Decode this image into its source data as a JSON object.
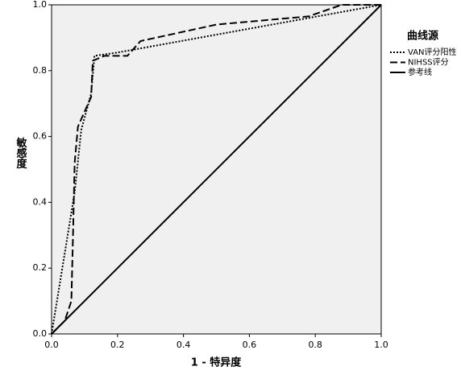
{
  "chart_data": {
    "type": "line",
    "x_label": "1 - 特异度",
    "y_label": "敏感度",
    "legend_title": "曲线源",
    "legend": "right",
    "xlim": [
      0,
      1
    ],
    "ylim": [
      0,
      1
    ],
    "xticks": [
      {
        "value": 0,
        "label": "0.0"
      },
      {
        "value": 0.2,
        "label": "0.2"
      },
      {
        "value": 0.4,
        "label": "0.4"
      },
      {
        "value": 0.6,
        "label": "0.6"
      },
      {
        "value": 0.8,
        "label": "0.8"
      },
      {
        "value": 1,
        "label": "1.0"
      }
    ],
    "yticks": [
      {
        "value": 0,
        "label": "0.0"
      },
      {
        "value": 0.2,
        "label": "0.2"
      },
      {
        "value": 0.4,
        "label": "0.4"
      },
      {
        "value": 0.6,
        "label": "0.6"
      },
      {
        "value": 0.8,
        "label": "0.8"
      },
      {
        "value": 1,
        "label": "1.0"
      }
    ],
    "series": [
      {
        "name": "VAN评分阳性",
        "color": "#000000",
        "dash": "dotted",
        "x": [
          0,
          0.07,
          0.09,
          0.12,
          0.13,
          0.2,
          1
        ],
        "values": [
          0,
          0.43,
          0.62,
          0.73,
          0.845,
          0.855,
          1
        ]
      },
      {
        "name": "NIHSS评分",
        "color": "#000000",
        "dash": "dashed",
        "x": [
          0,
          0.04,
          0.06,
          0.065,
          0.07,
          0.08,
          0.12,
          0.125,
          0.16,
          0.23,
          0.27,
          0.5,
          0.78,
          0.88,
          1
        ],
        "values": [
          0,
          0.04,
          0.1,
          0.3,
          0.52,
          0.63,
          0.72,
          0.83,
          0.845,
          0.845,
          0.89,
          0.94,
          0.965,
          1,
          1
        ]
      },
      {
        "name": "参考线",
        "color": "#000000",
        "dash": "solid",
        "x": [
          0,
          1
        ],
        "values": [
          0,
          1
        ]
      }
    ]
  }
}
